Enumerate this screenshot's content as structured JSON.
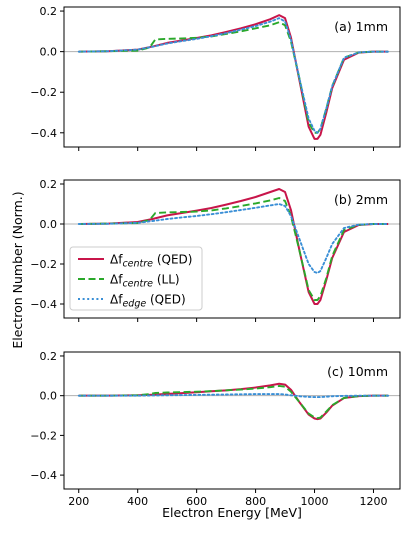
{
  "figure": {
    "xlabel": "Electron Energy [MeV]",
    "ylabel": "Electron Number (Norm.)"
  },
  "colors": {
    "centre_qed": "#c8154a",
    "centre_ll": "#2aa82a",
    "edge_qed": "#3a8fd6",
    "zero_line": "#b0b0b0"
  },
  "legend": {
    "placement": "middle panel, left",
    "entries": [
      {
        "series": "centre_qed",
        "base": "Δf",
        "sub": "centre",
        "suffix": " (QED)",
        "style": "solid"
      },
      {
        "series": "centre_ll",
        "base": "Δf",
        "sub": "centre",
        "suffix": " (LL)",
        "style": "dashed"
      },
      {
        "series": "edge_qed",
        "base": "Δf",
        "sub": "edge",
        "suffix": " (QED)",
        "style": "dotted"
      }
    ]
  },
  "chart_data": [
    {
      "type": "line",
      "panel_label": "(a) 1mm",
      "xlim": [
        150,
        1290
      ],
      "ylim": [
        -0.47,
        0.22
      ],
      "xticks": [
        200,
        400,
        600,
        800,
        1000,
        1200
      ],
      "yticks": [
        0.2,
        0.0,
        -0.2,
        -0.4
      ],
      "ytick_labels": [
        "0.2",
        "0.0",
        "−0.2",
        "−0.4"
      ],
      "show_xtick_labels": false,
      "series": [
        {
          "key": "centre_qed",
          "x": [
            200,
            300,
            400,
            450,
            500,
            550,
            600,
            650,
            700,
            750,
            800,
            850,
            880,
            900,
            920,
            950,
            980,
            1000,
            1010,
            1020,
            1040,
            1060,
            1100,
            1150,
            1200,
            1250
          ],
          "y": [
            0,
            0.002,
            0.01,
            0.025,
            0.043,
            0.055,
            0.067,
            0.08,
            0.097,
            0.115,
            0.135,
            0.16,
            0.18,
            0.165,
            0.07,
            -0.15,
            -0.37,
            -0.43,
            -0.43,
            -0.41,
            -0.3,
            -0.18,
            -0.04,
            -0.005,
            0,
            0
          ]
        },
        {
          "key": "centre_ll",
          "x": [
            200,
            300,
            400,
            440,
            460,
            500,
            550,
            600,
            650,
            700,
            750,
            800,
            850,
            880,
            900,
            920,
            950,
            980,
            1000,
            1010,
            1020,
            1040,
            1060,
            1100,
            1150,
            1200,
            1250
          ],
          "y": [
            0,
            0.002,
            0.005,
            0.02,
            0.06,
            0.063,
            0.065,
            0.068,
            0.075,
            0.087,
            0.1,
            0.115,
            0.13,
            0.145,
            0.13,
            0.05,
            -0.14,
            -0.35,
            -0.4,
            -0.4,
            -0.38,
            -0.28,
            -0.17,
            -0.03,
            -0.004,
            0,
            0
          ]
        },
        {
          "key": "edge_qed",
          "x": [
            200,
            300,
            400,
            450,
            500,
            550,
            600,
            650,
            700,
            750,
            800,
            850,
            880,
            900,
            920,
            950,
            980,
            1000,
            1010,
            1020,
            1040,
            1060,
            1100,
            1150,
            1200,
            1250
          ],
          "y": [
            0,
            0.002,
            0.01,
            0.024,
            0.04,
            0.052,
            0.063,
            0.076,
            0.091,
            0.108,
            0.126,
            0.148,
            0.165,
            0.148,
            0.06,
            -0.14,
            -0.33,
            -0.39,
            -0.4,
            -0.38,
            -0.28,
            -0.17,
            -0.03,
            -0.004,
            0,
            0
          ]
        }
      ]
    },
    {
      "type": "line",
      "panel_label": "(b) 2mm",
      "xlim": [
        150,
        1290
      ],
      "ylim": [
        -0.47,
        0.22
      ],
      "xticks": [
        200,
        400,
        600,
        800,
        1000,
        1200
      ],
      "yticks": [
        0.2,
        0.0,
        -0.2,
        -0.4
      ],
      "ytick_labels": [
        "0.2",
        "0.0",
        "−0.2",
        "−0.4"
      ],
      "show_xtick_labels": false,
      "series": [
        {
          "key": "centre_qed",
          "x": [
            200,
            300,
            400,
            450,
            500,
            550,
            600,
            650,
            700,
            750,
            800,
            850,
            880,
            900,
            920,
            950,
            980,
            1000,
            1010,
            1020,
            1040,
            1060,
            1100,
            1150,
            1200,
            1250
          ],
          "y": [
            0,
            0.002,
            0.01,
            0.025,
            0.043,
            0.055,
            0.067,
            0.08,
            0.097,
            0.115,
            0.135,
            0.16,
            0.175,
            0.16,
            0.07,
            -0.14,
            -0.34,
            -0.4,
            -0.4,
            -0.38,
            -0.28,
            -0.17,
            -0.04,
            -0.005,
            0,
            0
          ]
        },
        {
          "key": "centre_ll",
          "x": [
            200,
            300,
            400,
            440,
            460,
            500,
            550,
            600,
            650,
            700,
            750,
            800,
            850,
            880,
            900,
            920,
            950,
            980,
            1000,
            1010,
            1020,
            1040,
            1060,
            1100,
            1150,
            1200,
            1250
          ],
          "y": [
            0,
            0.002,
            0.005,
            0.02,
            0.055,
            0.058,
            0.06,
            0.062,
            0.068,
            0.078,
            0.09,
            0.103,
            0.118,
            0.13,
            0.115,
            0.04,
            -0.14,
            -0.33,
            -0.38,
            -0.38,
            -0.36,
            -0.27,
            -0.16,
            -0.03,
            -0.004,
            0,
            0
          ]
        },
        {
          "key": "edge_qed",
          "x": [
            200,
            300,
            400,
            450,
            500,
            550,
            600,
            650,
            700,
            750,
            800,
            850,
            880,
            900,
            920,
            950,
            980,
            1000,
            1010,
            1020,
            1040,
            1060,
            1100,
            1150,
            1200,
            1250
          ],
          "y": [
            0,
            0.001,
            0.006,
            0.015,
            0.025,
            0.033,
            0.04,
            0.049,
            0.059,
            0.07,
            0.081,
            0.093,
            0.1,
            0.09,
            0.04,
            -0.08,
            -0.2,
            -0.24,
            -0.245,
            -0.235,
            -0.17,
            -0.1,
            -0.02,
            -0.003,
            0,
            0
          ]
        }
      ]
    },
    {
      "type": "line",
      "panel_label": "(c) 10mm",
      "xlim": [
        150,
        1290
      ],
      "ylim": [
        -0.47,
        0.22
      ],
      "xticks": [
        200,
        400,
        600,
        800,
        1000,
        1200
      ],
      "yticks": [
        0.2,
        0.0,
        -0.2,
        -0.4
      ],
      "ytick_labels": [
        "0.2",
        "0.0",
        "−0.2",
        "−0.4"
      ],
      "xtick_labels": [
        "200",
        "400",
        "600",
        "800",
        "1000",
        "1200"
      ],
      "show_xtick_labels": true,
      "series": [
        {
          "key": "centre_qed",
          "x": [
            200,
            300,
            400,
            450,
            500,
            550,
            600,
            650,
            700,
            750,
            800,
            850,
            880,
            900,
            920,
            950,
            980,
            1000,
            1010,
            1020,
            1040,
            1060,
            1100,
            1150,
            1200,
            1250
          ],
          "y": [
            0,
            0,
            0.002,
            0.005,
            0.009,
            0.013,
            0.017,
            0.022,
            0.027,
            0.033,
            0.041,
            0.052,
            0.06,
            0.056,
            0.03,
            -0.035,
            -0.095,
            -0.115,
            -0.118,
            -0.115,
            -0.085,
            -0.05,
            -0.012,
            -0.002,
            0,
            0
          ]
        },
        {
          "key": "centre_ll",
          "x": [
            200,
            300,
            400,
            440,
            460,
            500,
            550,
            600,
            650,
            700,
            750,
            800,
            850,
            880,
            900,
            920,
            950,
            980,
            1000,
            1010,
            1020,
            1040,
            1060,
            1100,
            1150,
            1200,
            1250
          ],
          "y": [
            0,
            0,
            0.002,
            0.008,
            0.014,
            0.016,
            0.018,
            0.02,
            0.023,
            0.027,
            0.031,
            0.036,
            0.043,
            0.049,
            0.045,
            0.02,
            -0.035,
            -0.09,
            -0.11,
            -0.113,
            -0.11,
            -0.08,
            -0.048,
            -0.011,
            -0.002,
            0,
            0
          ]
        },
        {
          "key": "edge_qed",
          "x": [
            200,
            300,
            400,
            450,
            500,
            550,
            600,
            650,
            700,
            750,
            800,
            850,
            880,
            900,
            920,
            950,
            980,
            1000,
            1010,
            1020,
            1040,
            1060,
            1100,
            1150,
            1200,
            1250
          ],
          "y": [
            0,
            0,
            0,
            0.001,
            0.002,
            0.003,
            0.004,
            0.005,
            0.006,
            0.007,
            0.008,
            0.008,
            0.008,
            0.006,
            0.002,
            -0.003,
            -0.006,
            -0.007,
            -0.007,
            -0.007,
            -0.005,
            -0.003,
            -0.001,
            0,
            0,
            0
          ]
        }
      ]
    }
  ]
}
